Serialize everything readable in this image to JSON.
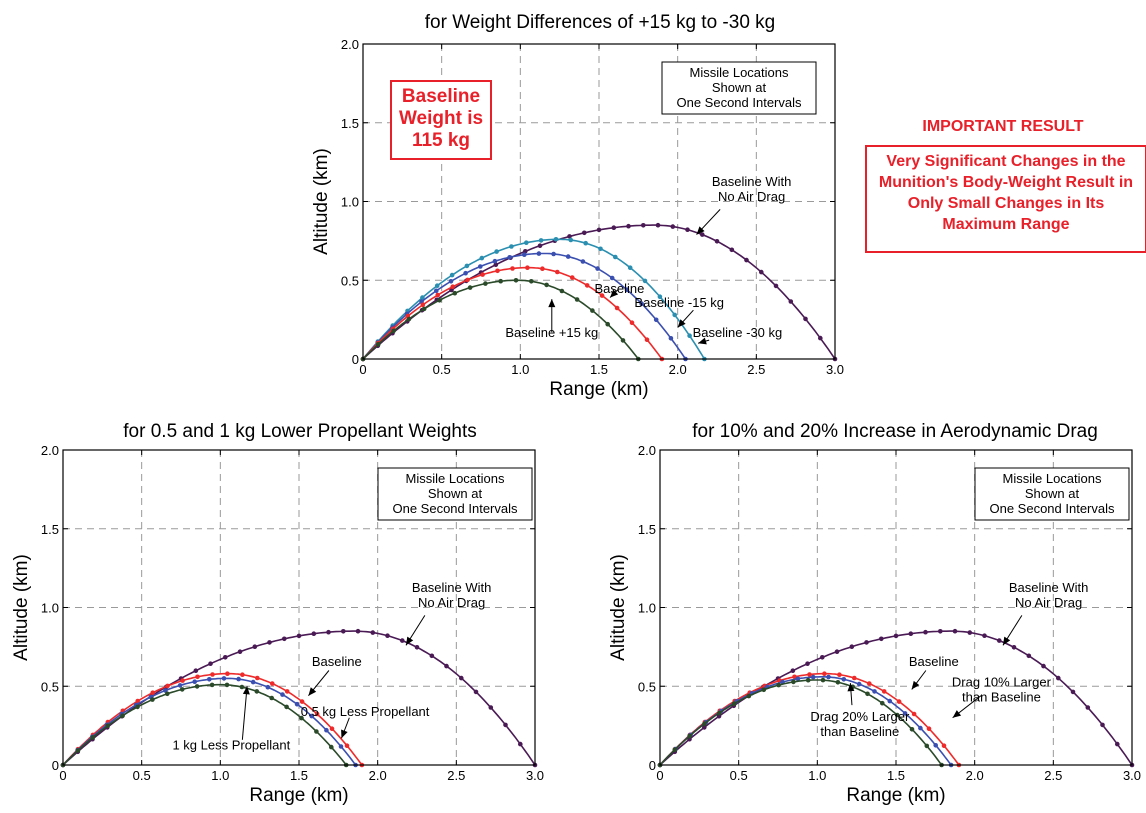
{
  "notes": {
    "baseline_weight": "Baseline Weight is 115 kg",
    "important_title": "IMPORTANT RESULT",
    "important_body": "Very Significant Changes in the Munition's Body-Weight Result in Only Small Changes in Its Maximum Range"
  },
  "colors": {
    "no_drag": "#4a1a55",
    "baseline": "#ee2a2a",
    "blue": "#3a4fb0",
    "teal": "#2a8fb0",
    "green": "#2a4a2a",
    "note_red": "#e8202a"
  },
  "chart_data": [
    {
      "type": "line",
      "title": "for Weight Differences of +15 kg to -30 kg",
      "xlabel": "Range (km)",
      "ylabel": "Altitude (km)",
      "xlim": [
        0,
        3.0
      ],
      "ylim": [
        0,
        2.0
      ],
      "xticks": [
        "0",
        "0.5",
        "1.0",
        "1.5",
        "2.0",
        "2.5",
        "3.0"
      ],
      "yticks": [
        "0",
        "0.5",
        "1.0",
        "1.5",
        "2.0"
      ],
      "grid": true,
      "box_text": [
        "Missile Locations",
        "Shown at",
        "One Second Intervals"
      ],
      "series": [
        {
          "name": "Baseline With No Air Drag",
          "color": "no_drag",
          "apex_x": 1.85,
          "apex_y": 0.85,
          "x_end": 3.0
        },
        {
          "name": "Baseline -30 kg",
          "color": "teal",
          "apex_x": 1.25,
          "apex_y": 0.76,
          "x_end": 2.17
        },
        {
          "name": "Baseline -15 kg",
          "color": "blue",
          "apex_x": 1.15,
          "apex_y": 0.67,
          "x_end": 2.05
        },
        {
          "name": "Baseline",
          "color": "baseline",
          "apex_x": 1.05,
          "apex_y": 0.58,
          "x_end": 1.9
        },
        {
          "name": "Baseline +15 kg",
          "color": "green",
          "apex_x": 0.98,
          "apex_y": 0.5,
          "x_end": 1.75
        }
      ],
      "labels": [
        {
          "lines": [
            "Baseline With",
            "No Air Drag"
          ],
          "tx": 2.47,
          "ty": 1.1,
          "px": 2.37,
          "py": 0.8
        },
        {
          "lines": [
            "Baseline"
          ],
          "tx": 1.63,
          "ty": 0.42,
          "px": 1.6,
          "py": 0.4,
          "sx": 1.62,
          "sy": 0.44,
          "ex": 1.57,
          "ey": 0.39
        },
        {
          "lines": [
            "Baseline -15 kg"
          ],
          "tx": 2.01,
          "ty": 0.33,
          "px": 2.0,
          "py": 0.31,
          "sx": 2.1,
          "sy": 0.31,
          "ex": 2.0,
          "ey": 0.2
        },
        {
          "lines": [
            "Baseline -30 kg"
          ],
          "tx": 2.38,
          "ty": 0.14,
          "px": 2.36,
          "py": 0.12,
          "sx": 2.2,
          "sy": 0.12,
          "ex": 2.13,
          "ey": 0.1
        },
        {
          "lines": [
            "Baseline +15 kg"
          ],
          "tx": 1.2,
          "ty": 0.14,
          "px": 1.2,
          "py": 0.12,
          "sx": 1.2,
          "sy": 0.17,
          "ex": 1.2,
          "ey": 0.38
        }
      ]
    },
    {
      "type": "line",
      "title": "for 0.5 and 1 kg Lower Propellant Weights",
      "xlabel": "Range (km)",
      "ylabel": "Altitude (km)",
      "xlim": [
        0,
        3.0
      ],
      "ylim": [
        0,
        2.0
      ],
      "xticks": [
        "0",
        "0.5",
        "1.0",
        "1.5",
        "2.0",
        "2.5",
        "3.0"
      ],
      "yticks": [
        "0",
        "0.5",
        "1.0",
        "1.5",
        "2.0"
      ],
      "grid": true,
      "box_text": [
        "Missile Locations",
        "Shown at",
        "One Second Intervals"
      ],
      "series": [
        {
          "name": "Baseline With No Air Drag",
          "color": "no_drag",
          "apex_x": 1.85,
          "apex_y": 0.85,
          "x_end": 3.0
        },
        {
          "name": "Baseline",
          "color": "baseline",
          "apex_x": 1.05,
          "apex_y": 0.58,
          "x_end": 1.9
        },
        {
          "name": "0.5 kg Less Propellant",
          "color": "blue",
          "apex_x": 1.04,
          "apex_y": 0.55,
          "x_end": 1.86
        },
        {
          "name": "1 kg Less Propellant",
          "color": "green",
          "apex_x": 1.0,
          "apex_y": 0.51,
          "x_end": 1.8
        }
      ],
      "labels": [
        {
          "lines": [
            "Baseline With",
            "No Air Drag"
          ],
          "tx": 2.47,
          "ty": 1.1,
          "px": 2.37,
          "py": 0.8
        },
        {
          "lines": [
            "Baseline"
          ],
          "tx": 1.74,
          "ty": 0.63,
          "px": 1.7,
          "py": 0.6,
          "sx": 1.69,
          "sy": 0.6,
          "ex": 1.56,
          "ey": 0.44
        },
        {
          "lines": [
            "0.5 kg Less Propellant"
          ],
          "tx": 1.92,
          "ty": 0.31,
          "px": 1.92,
          "py": 0.3,
          "sx": 1.82,
          "sy": 0.3,
          "ex": 1.77,
          "ey": 0.17
        },
        {
          "lines": [
            "1 kg Less Propellant"
          ],
          "tx": 1.07,
          "ty": 0.1,
          "px": 1.07,
          "py": 0.1,
          "sx": 1.14,
          "sy": 0.16,
          "ex": 1.17,
          "ey": 0.5
        }
      ]
    },
    {
      "type": "line",
      "title": "for 10% and 20% Increase in Aerodynamic Drag",
      "xlabel": "Range (km)",
      "ylabel": "Altitude (km)",
      "xlim": [
        0,
        3.0
      ],
      "ylim": [
        0,
        2.0
      ],
      "xticks": [
        "0",
        "0.5",
        "1.0",
        "1.5",
        "2.0",
        "2.5",
        "3.0"
      ],
      "yticks": [
        "0",
        "0.5",
        "1.0",
        "1.5",
        "2.0"
      ],
      "grid": true,
      "box_text": [
        "Missile Locations",
        "Shown at",
        "One Second Intervals"
      ],
      "series": [
        {
          "name": "Baseline With No Air Drag",
          "color": "no_drag",
          "apex_x": 1.85,
          "apex_y": 0.85,
          "x_end": 3.0
        },
        {
          "name": "Baseline",
          "color": "baseline",
          "apex_x": 1.05,
          "apex_y": 0.58,
          "x_end": 1.9
        },
        {
          "name": "Drag 10% Larger than Baseline",
          "color": "blue",
          "apex_x": 1.03,
          "apex_y": 0.56,
          "x_end": 1.85
        },
        {
          "name": "Drag 20% Larger than Baseline",
          "color": "green",
          "apex_x": 1.0,
          "apex_y": 0.54,
          "x_end": 1.79
        }
      ],
      "labels": [
        {
          "lines": [
            "Baseline With",
            "No Air Drag"
          ],
          "tx": 2.47,
          "ty": 1.1,
          "px": 2.37,
          "py": 0.8
        },
        {
          "lines": [
            "Baseline"
          ],
          "tx": 1.74,
          "ty": 0.63,
          "px": 1.7,
          "py": 0.6,
          "sx": 1.69,
          "sy": 0.6,
          "ex": 1.6,
          "ey": 0.48
        },
        {
          "lines": [
            "Drag 10% Larger",
            "than Baseline"
          ],
          "tx": 2.17,
          "ty": 0.5,
          "px": 2.17,
          "py": 0.48,
          "sx": 2.04,
          "sy": 0.44,
          "ex": 1.86,
          "ey": 0.3
        },
        {
          "lines": [
            "Drag 20% Larger",
            "than Baseline"
          ],
          "tx": 1.27,
          "ty": 0.28,
          "px": 1.27,
          "py": 0.27,
          "sx": 1.22,
          "sy": 0.38,
          "ex": 1.21,
          "ey": 0.52
        }
      ]
    }
  ]
}
